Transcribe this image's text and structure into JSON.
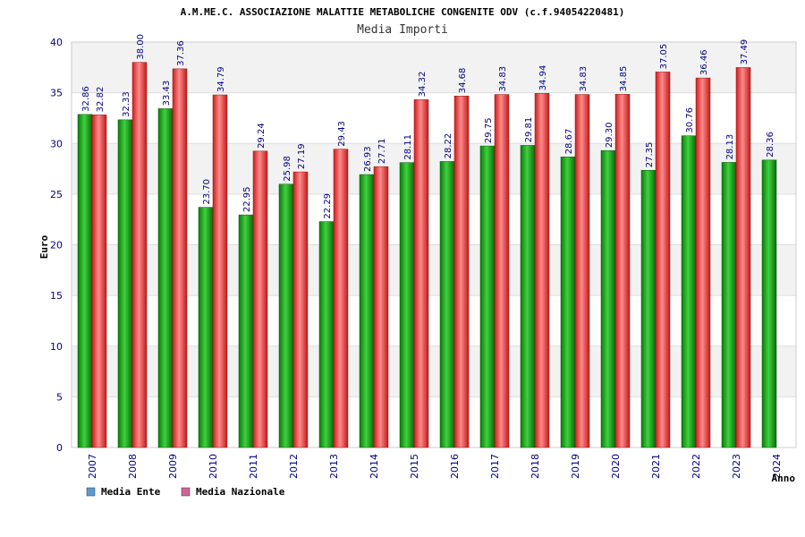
{
  "chart_data": {
    "type": "bar",
    "title": "A.M.ME.C. ASSOCIAZIONE MALATTIE METABOLICHE CONGENITE ODV (c.f.94054220481)",
    "subtitle": "Media Importi",
    "xlabel": "Anno",
    "ylabel": "Euro",
    "ylim": [
      0,
      40
    ],
    "yticks": [
      "0",
      "5",
      "10",
      "15",
      "20",
      "25",
      "30",
      "35",
      "40"
    ],
    "grid": true,
    "legend_position": "bottom-left",
    "categories": [
      "2007",
      "2008",
      "2009",
      "2010",
      "2011",
      "2012",
      "2013",
      "2014",
      "2015",
      "2016",
      "2017",
      "2018",
      "2019",
      "2020",
      "2021",
      "2022",
      "2023",
      "2024"
    ],
    "series": [
      {
        "name": "Media Ente",
        "legend_color": "#5b9bd5",
        "bar_color": "#1fa51f",
        "values": [
          32.86,
          32.33,
          33.43,
          23.7,
          22.95,
          25.98,
          22.29,
          26.93,
          28.11,
          28.22,
          29.75,
          29.81,
          28.67,
          29.3,
          27.35,
          30.76,
          28.13,
          28.36
        ],
        "labels": [
          "32.86",
          "32.33",
          "33.43",
          "23.70",
          "22.95",
          "25.98",
          "22.29",
          "26.93",
          "28.11",
          "28.22",
          "29.75",
          "29.81",
          "28.67",
          "29.30",
          "27.35",
          "30.76",
          "28.13",
          "28.36"
        ]
      },
      {
        "name": "Media Nazionale",
        "legend_color": "#cc6699",
        "bar_color": "#e83a3a",
        "values": [
          32.82,
          38.0,
          37.36,
          34.79,
          29.24,
          27.19,
          29.43,
          27.71,
          34.32,
          34.68,
          34.83,
          34.94,
          34.83,
          34.85,
          37.05,
          36.46,
          37.49,
          null
        ],
        "labels": [
          "32.82",
          "38.00",
          "37.36",
          "34.79",
          "29.24",
          "27.19",
          "29.43",
          "27.71",
          "34.32",
          "34.68",
          "34.83",
          "34.94",
          "34.83",
          "34.85",
          "37.05",
          "36.46",
          "37.49",
          ""
        ]
      }
    ]
  }
}
